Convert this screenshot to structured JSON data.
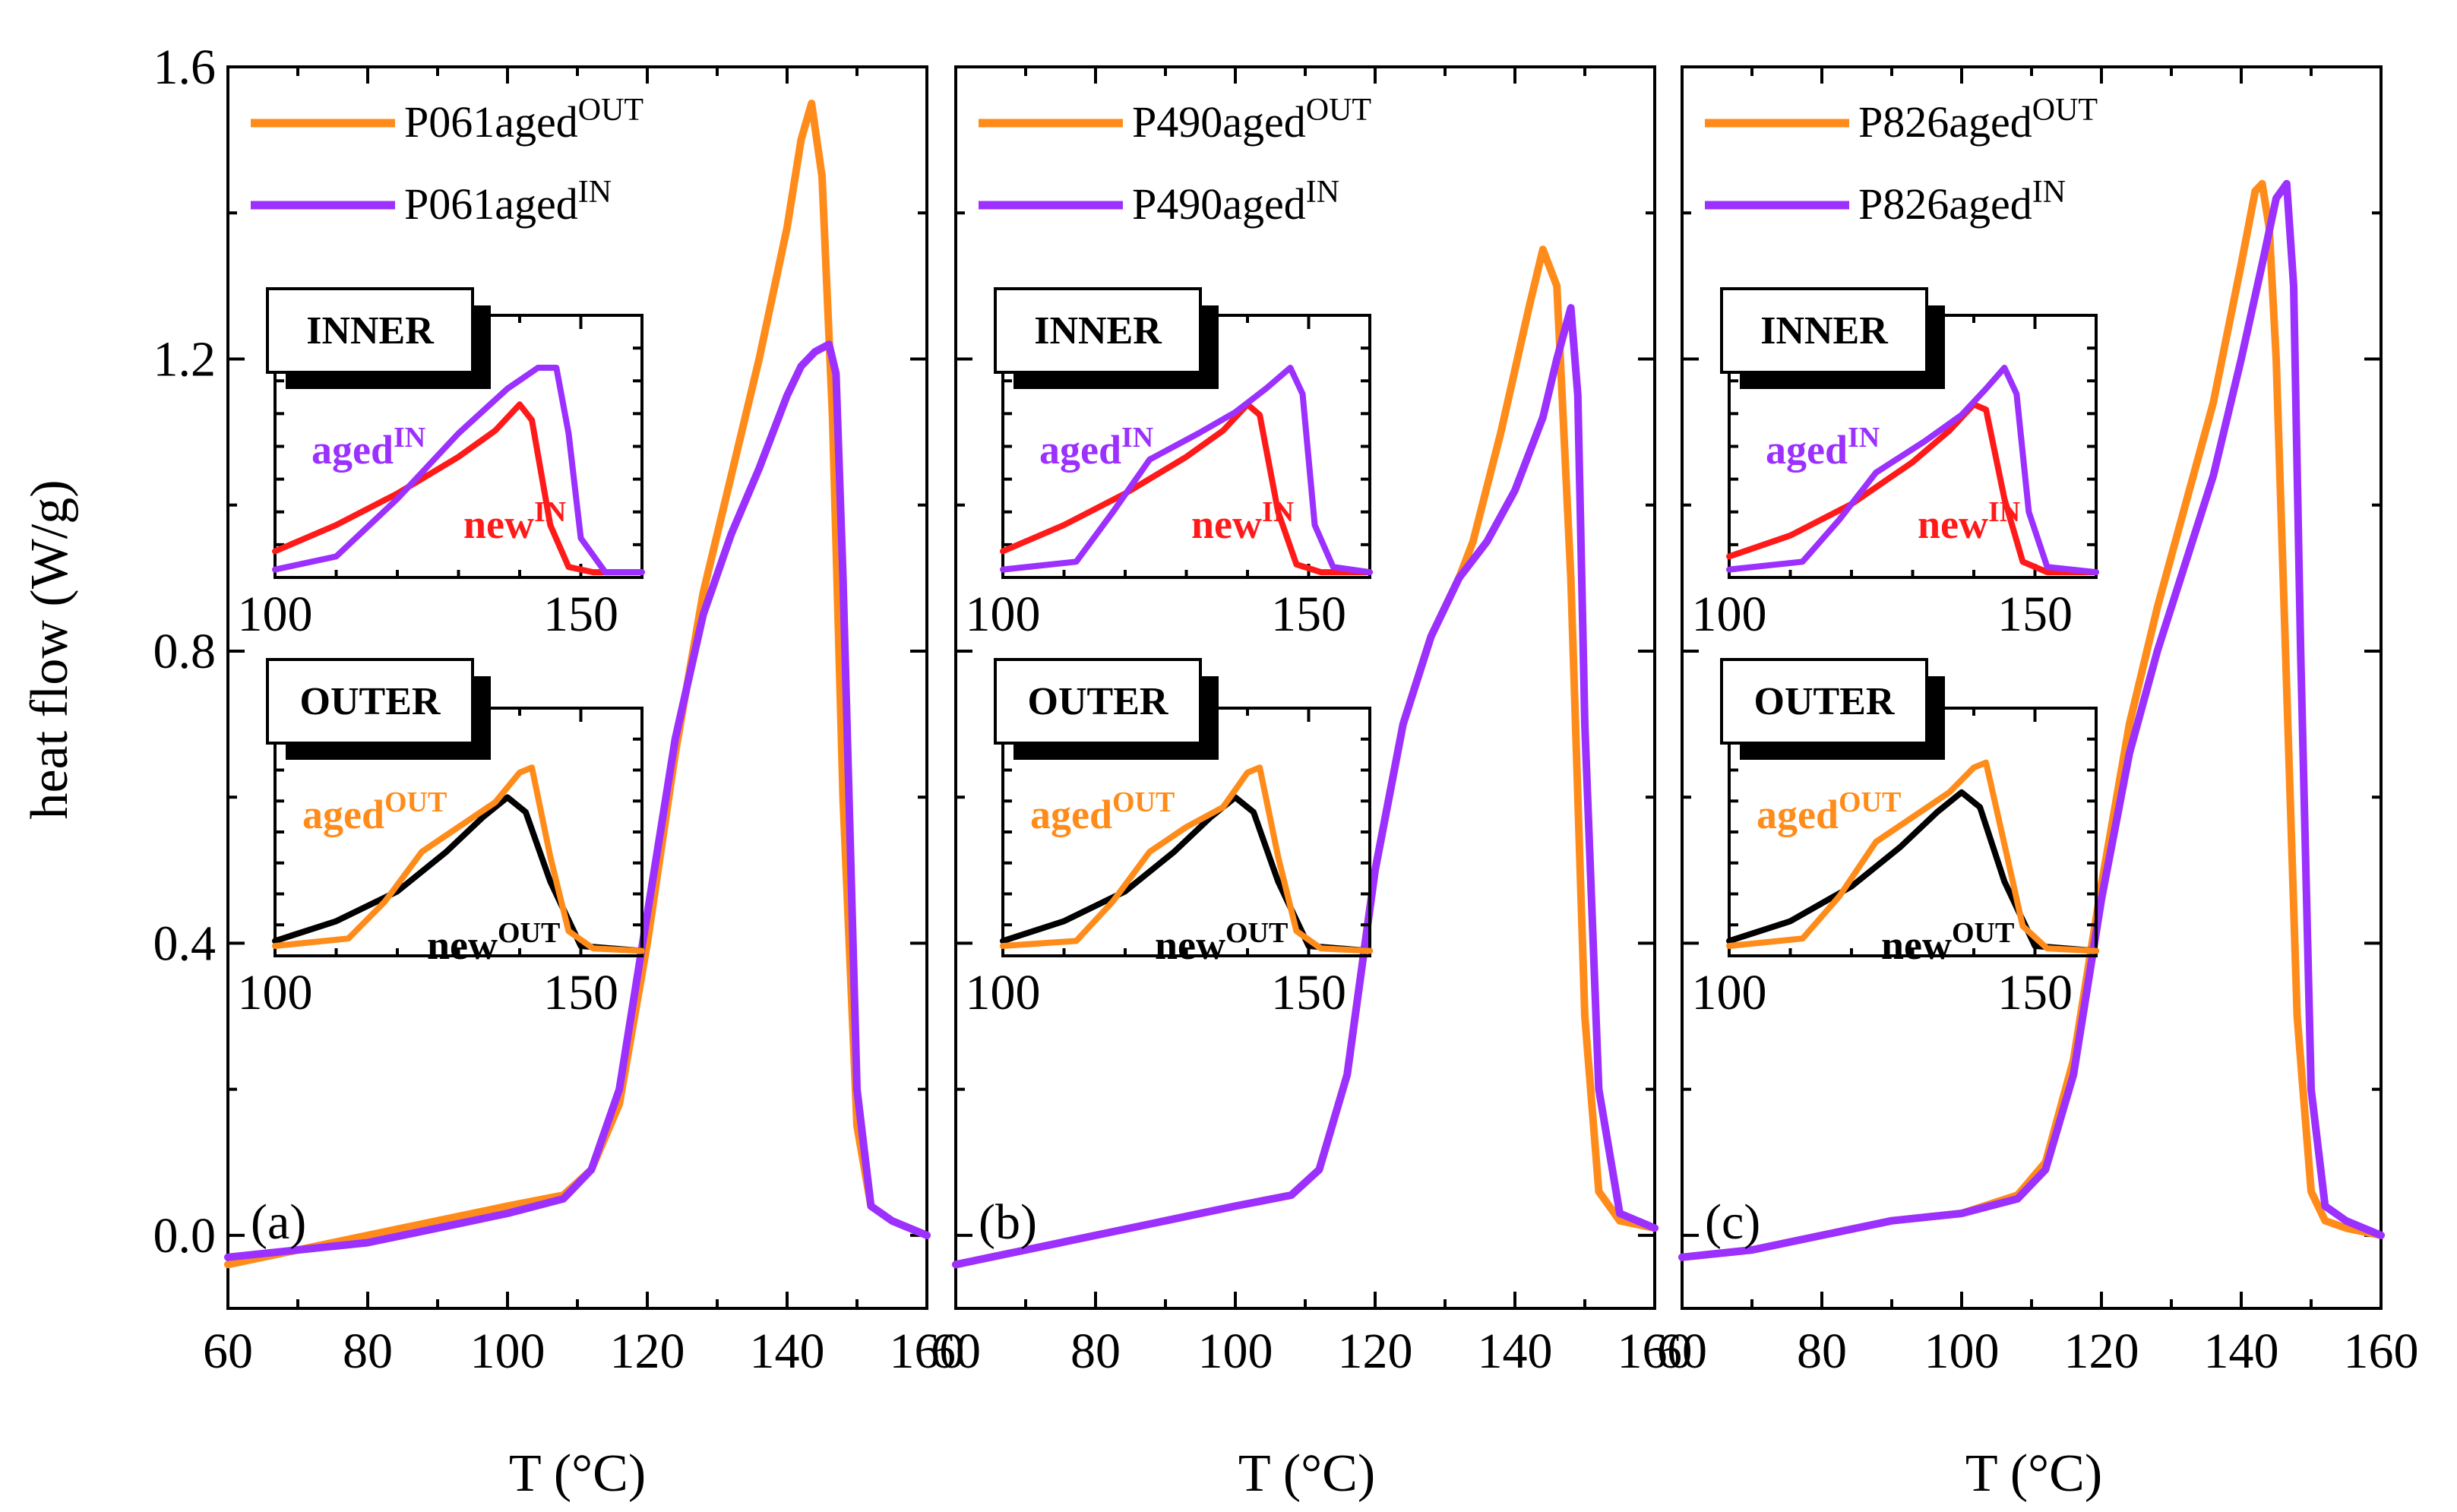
{
  "chart_data": {
    "type": "line",
    "ylabel": "heat flow (W/g)",
    "xlabel": "T (°C)",
    "xlim": [
      60,
      160
    ],
    "ylim": [
      -0.1,
      1.6
    ],
    "xticks": [
      "60",
      "80",
      "100",
      "120",
      "140",
      "160"
    ],
    "yticks": [
      "0.0",
      "0.4",
      "0.8",
      "1.2",
      "1.6"
    ],
    "colors": {
      "out": "#ff8c1a",
      "in": "#9b30ff",
      "new_in": "#ff1a1a",
      "new_out": "#000000"
    },
    "inset": {
      "xticks": [
        "100",
        "150"
      ],
      "inner_title": "INNER",
      "outer_title": "OUTER",
      "aged_in_label": "aged",
      "aged_in_sup": "IN",
      "new_in_label": "new",
      "new_in_sup": "IN",
      "aged_out_label": "aged",
      "aged_out_sup": "OUT",
      "new_out_label": "new",
      "new_out_sup": "OUT"
    },
    "panels": [
      {
        "letter": "(a)",
        "legend": [
          {
            "name": "P061aged",
            "sup": "OUT"
          },
          {
            "name": "P061aged",
            "sup": "IN"
          }
        ],
        "series": [
          {
            "key": "out",
            "x": [
              60,
              70,
              80,
              90,
              100,
              108,
              112,
              116,
              120,
              124,
              128,
              132,
              136,
              140,
              142,
              143.5,
              145,
              146.5,
              148,
              150,
              152,
              155,
              160
            ],
            "y": [
              -0.04,
              -0.02,
              0.0,
              0.02,
              0.04,
              0.055,
              0.09,
              0.18,
              0.4,
              0.66,
              0.88,
              1.04,
              1.2,
              1.38,
              1.5,
              1.55,
              1.45,
              1.12,
              0.6,
              0.15,
              0.04,
              0.02,
              0.0
            ]
          },
          {
            "key": "in",
            "x": [
              60,
              70,
              80,
              90,
              100,
              108,
              112,
              116,
              120,
              124,
              128,
              132,
              136,
              140,
              142,
              144,
              146,
              147,
              148,
              150,
              152,
              155,
              160
            ],
            "y": [
              -0.03,
              -0.02,
              -0.01,
              0.01,
              0.03,
              0.05,
              0.09,
              0.2,
              0.44,
              0.68,
              0.85,
              0.96,
              1.05,
              1.15,
              1.19,
              1.21,
              1.22,
              1.18,
              0.9,
              0.2,
              0.04,
              0.02,
              0.0
            ]
          }
        ],
        "inset_inner": {
          "aged": {
            "x": [
              100,
              110,
              120,
              130,
              138,
              143,
              146,
              148,
              150,
              154,
              160
            ],
            "y": [
              0.03,
              0.08,
              0.3,
              0.55,
              0.72,
              0.8,
              0.8,
              0.55,
              0.15,
              0.02,
              0.02
            ]
          },
          "new": {
            "x": [
              100,
              110,
              120,
              130,
              136,
              140,
              142,
              145,
              148,
              152,
              160
            ],
            "y": [
              0.1,
              0.2,
              0.32,
              0.46,
              0.56,
              0.66,
              0.6,
              0.2,
              0.04,
              0.02,
              0.02
            ]
          }
        },
        "inset_outer": {
          "aged": {
            "x": [
              100,
              112,
              118,
              124,
              130,
              136,
              140,
              142,
              145,
              148,
              152,
              160
            ],
            "y": [
              0.04,
              0.07,
              0.22,
              0.42,
              0.52,
              0.62,
              0.74,
              0.76,
              0.4,
              0.1,
              0.03,
              0.02
            ]
          },
          "new": {
            "x": [
              100,
              110,
              120,
              128,
              134,
              138,
              141,
              145,
              150,
              160
            ],
            "y": [
              0.06,
              0.14,
              0.26,
              0.42,
              0.56,
              0.64,
              0.58,
              0.3,
              0.04,
              0.02
            ]
          }
        }
      },
      {
        "letter": "(b)",
        "legend": [
          {
            "name": "P490aged",
            "sup": "OUT"
          },
          {
            "name": "P490aged",
            "sup": "IN"
          }
        ],
        "series": [
          {
            "key": "out",
            "x": [
              60,
              70,
              80,
              90,
              100,
              108,
              112,
              116,
              120,
              124,
              128,
              132,
              134,
              138,
              142,
              144,
              146,
              148,
              150,
              152,
              155,
              160
            ],
            "y": [
              -0.04,
              -0.02,
              0.0,
              0.02,
              0.04,
              0.055,
              0.09,
              0.22,
              0.5,
              0.7,
              0.82,
              0.9,
              0.95,
              1.1,
              1.27,
              1.35,
              1.3,
              0.9,
              0.3,
              0.06,
              0.02,
              0.01
            ]
          },
          {
            "key": "in",
            "x": [
              60,
              70,
              80,
              90,
              100,
              108,
              112,
              116,
              120,
              124,
              128,
              132,
              136,
              140,
              144,
              146,
              148,
              149,
              150,
              152,
              155,
              160
            ],
            "y": [
              -0.04,
              -0.02,
              0.0,
              0.02,
              0.04,
              0.055,
              0.09,
              0.22,
              0.5,
              0.7,
              0.82,
              0.9,
              0.95,
              1.02,
              1.12,
              1.2,
              1.27,
              1.15,
              0.7,
              0.2,
              0.03,
              0.01
            ]
          }
        ],
        "inset_inner": {
          "aged": {
            "x": [
              100,
              112,
              118,
              124,
              132,
              138,
              143,
              147,
              149,
              151,
              154,
              160
            ],
            "y": [
              0.03,
              0.06,
              0.25,
              0.45,
              0.55,
              0.63,
              0.72,
              0.8,
              0.7,
              0.2,
              0.04,
              0.02
            ]
          },
          "new": {
            "x": [
              100,
              110,
              120,
              130,
              136,
              140,
              142,
              145,
              148,
              152,
              160
            ],
            "y": [
              0.1,
              0.2,
              0.32,
              0.46,
              0.56,
              0.66,
              0.62,
              0.25,
              0.05,
              0.02,
              0.02
            ]
          }
        },
        "inset_outer": {
          "aged": {
            "x": [
              100,
              112,
              118,
              124,
              130,
              136,
              140,
              142,
              145,
              148,
              152,
              160
            ],
            "y": [
              0.04,
              0.06,
              0.22,
              0.42,
              0.52,
              0.6,
              0.74,
              0.76,
              0.4,
              0.1,
              0.03,
              0.02
            ]
          },
          "new": {
            "x": [
              100,
              110,
              120,
              128,
              134,
              138,
              141,
              145,
              150,
              160
            ],
            "y": [
              0.06,
              0.14,
              0.26,
              0.42,
              0.56,
              0.64,
              0.58,
              0.3,
              0.04,
              0.02
            ]
          }
        }
      },
      {
        "letter": "(c)",
        "legend": [
          {
            "name": "P826aged",
            "sup": "OUT"
          },
          {
            "name": "P826aged",
            "sup": "IN"
          }
        ],
        "series": [
          {
            "key": "out",
            "x": [
              60,
              70,
              80,
              90,
              100,
              108,
              112,
              116,
              120,
              124,
              128,
              132,
              136,
              140,
              142,
              143,
              144,
              145,
              146,
              148,
              150,
              152,
              155,
              160
            ],
            "y": [
              -0.03,
              -0.02,
              0.0,
              0.02,
              0.03,
              0.055,
              0.1,
              0.24,
              0.48,
              0.7,
              0.86,
              1.0,
              1.14,
              1.33,
              1.43,
              1.44,
              1.38,
              1.2,
              0.9,
              0.3,
              0.06,
              0.02,
              0.01,
              0.0
            ]
          },
          {
            "key": "in",
            "x": [
              60,
              70,
              80,
              90,
              100,
              108,
              112,
              116,
              120,
              124,
              128,
              132,
              136,
              140,
              143,
              145,
              146.5,
              147.5,
              148.5,
              150,
              152,
              155,
              160
            ],
            "y": [
              -0.03,
              -0.02,
              0.0,
              0.02,
              0.03,
              0.05,
              0.09,
              0.22,
              0.46,
              0.66,
              0.8,
              0.92,
              1.04,
              1.2,
              1.33,
              1.42,
              1.44,
              1.3,
              0.8,
              0.2,
              0.04,
              0.02,
              0.0
            ]
          }
        ],
        "inset_inner": {
          "aged": {
            "x": [
              100,
              112,
              118,
              124,
              132,
              138,
              142,
              145,
              147,
              149,
              152,
              160
            ],
            "y": [
              0.03,
              0.06,
              0.22,
              0.4,
              0.52,
              0.62,
              0.72,
              0.8,
              0.7,
              0.25,
              0.04,
              0.02
            ]
          },
          "new": {
            "x": [
              100,
              110,
              120,
              130,
              136,
              140,
              142,
              145,
              148,
              152,
              160
            ],
            "y": [
              0.08,
              0.16,
              0.28,
              0.44,
              0.56,
              0.66,
              0.64,
              0.3,
              0.06,
              0.02,
              0.02
            ]
          }
        },
        "inset_outer": {
          "aged": {
            "x": [
              100,
              112,
              118,
              124,
              130,
              136,
              140,
              142,
              145,
              148,
              152,
              160
            ],
            "y": [
              0.04,
              0.07,
              0.24,
              0.46,
              0.56,
              0.66,
              0.76,
              0.78,
              0.45,
              0.12,
              0.03,
              0.02
            ]
          },
          "new": {
            "x": [
              100,
              110,
              120,
              128,
              134,
              138,
              141,
              145,
              150,
              160
            ],
            "y": [
              0.06,
              0.14,
              0.28,
              0.44,
              0.58,
              0.66,
              0.6,
              0.3,
              0.04,
              0.02
            ]
          }
        }
      }
    ]
  }
}
